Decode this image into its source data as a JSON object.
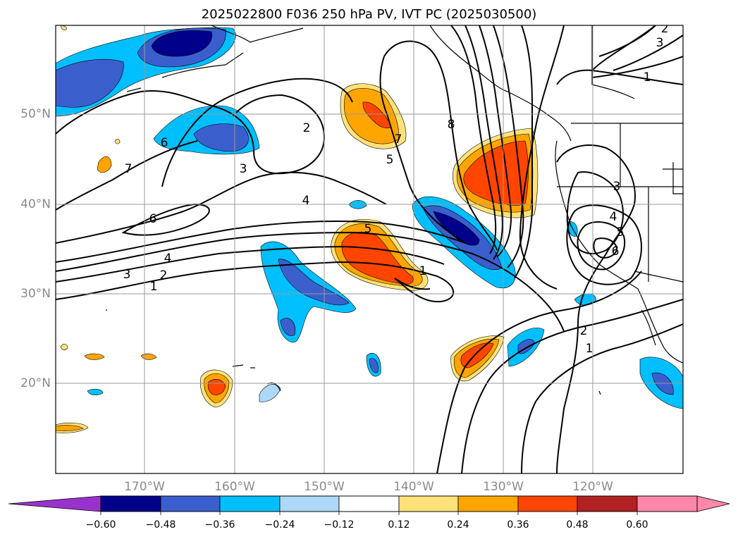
{
  "title": "2025022800 F036 250 hPa PV, IVT PC (2025030500)",
  "lat_labels": [
    "50°N",
    "40°N",
    "30°N",
    "20°N"
  ],
  "lon_labels": [
    "170°W",
    "160°W",
    "150°W",
    "140°W",
    "130°W",
    "120°W"
  ],
  "colorbar": {
    "tick_labels": [
      "−0.60",
      "−0.48",
      "−0.36",
      "−0.24",
      "−0.12",
      "0.12",
      "0.24",
      "0.36",
      "0.48",
      "0.60"
    ],
    "colors": [
      "#9932cc",
      "#00008b",
      "#3a5fcd",
      "#00bfff",
      "#add8f7",
      "#ffffff",
      "#ffe27a",
      "#ffa500",
      "#ff4500",
      "#b22222",
      "#ff88aa"
    ]
  },
  "contour_labels": [
    "1",
    "2",
    "3",
    "4",
    "5",
    "6",
    "7",
    "8",
    "6",
    "3",
    "2",
    "4",
    "5",
    "7",
    "8",
    "1",
    "2",
    "3",
    "1",
    "2",
    "4",
    "3",
    "4",
    "5",
    "6",
    "1",
    "2",
    "1"
  ]
}
